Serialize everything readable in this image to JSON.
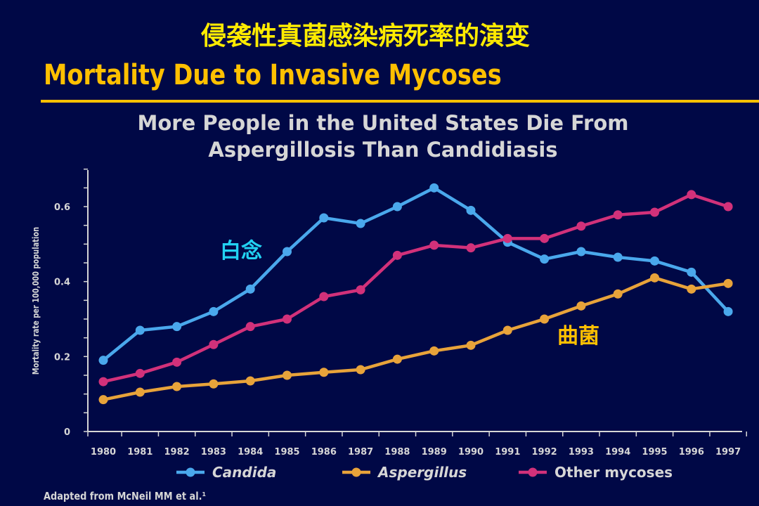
{
  "cn_title": "侵袭性真菌感染病死率的演变",
  "en_title": "Mortality Due to Invasive Mycoses",
  "subtitle_line1": "More People in the United States Die From",
  "subtitle_line2": "Aspergillosis Than Candidiasis",
  "source": "Adapted from McNeil MM et al.¹",
  "colors": {
    "background": "#000846",
    "title_yellow": "#ffc000",
    "candida": "#4aa8ec",
    "aspergillus": "#e8a33a",
    "other": "#d2317a",
    "axis": "#d6d6d6"
  },
  "chart_data": {
    "type": "line",
    "ylabel": "Mortality rate per 100,000 population",
    "ylim": [
      0,
      0.7
    ],
    "yticks": [
      {
        "value": 0,
        "label": "0"
      },
      {
        "value": 0.2,
        "label": "0.2"
      },
      {
        "value": 0.4,
        "label": "0.4"
      },
      {
        "value": 0.6,
        "label": "0.6"
      }
    ],
    "categories": [
      "1980",
      "1981",
      "1982",
      "1983",
      "1984",
      "1985",
      "1986",
      "1987",
      "1988",
      "1989",
      "1990",
      "1991",
      "1992",
      "1993",
      "1994",
      "1995",
      "1996",
      "1997"
    ],
    "legend_position": "bottom",
    "series": [
      {
        "name": "Candida",
        "italic": true,
        "color": "#4aa8ec",
        "values": [
          0.19,
          0.27,
          0.28,
          0.32,
          0.38,
          0.48,
          0.57,
          0.555,
          0.6,
          0.65,
          0.59,
          0.505,
          0.46,
          0.48,
          0.465,
          0.455,
          0.425,
          0.32
        ]
      },
      {
        "name": "Aspergillus",
        "italic": true,
        "color": "#e8a33a",
        "values": [
          0.085,
          0.105,
          0.12,
          0.127,
          0.135,
          0.15,
          0.158,
          0.165,
          0.193,
          0.215,
          0.23,
          0.27,
          0.3,
          0.335,
          0.367,
          0.41,
          0.38,
          0.395
        ]
      },
      {
        "name": "Other mycoses",
        "italic": false,
        "color": "#d2317a",
        "values": [
          0.133,
          0.155,
          0.185,
          0.232,
          0.28,
          0.3,
          0.36,
          0.378,
          0.47,
          0.497,
          0.49,
          0.515,
          0.515,
          0.548,
          0.578,
          0.585,
          0.632,
          0.6
        ]
      }
    ],
    "annotations": [
      {
        "text": "白念",
        "color": "#22d2f2",
        "series": "Candida"
      },
      {
        "text": "曲菌",
        "color": "#ffc000",
        "series": "Aspergillus"
      }
    ]
  }
}
